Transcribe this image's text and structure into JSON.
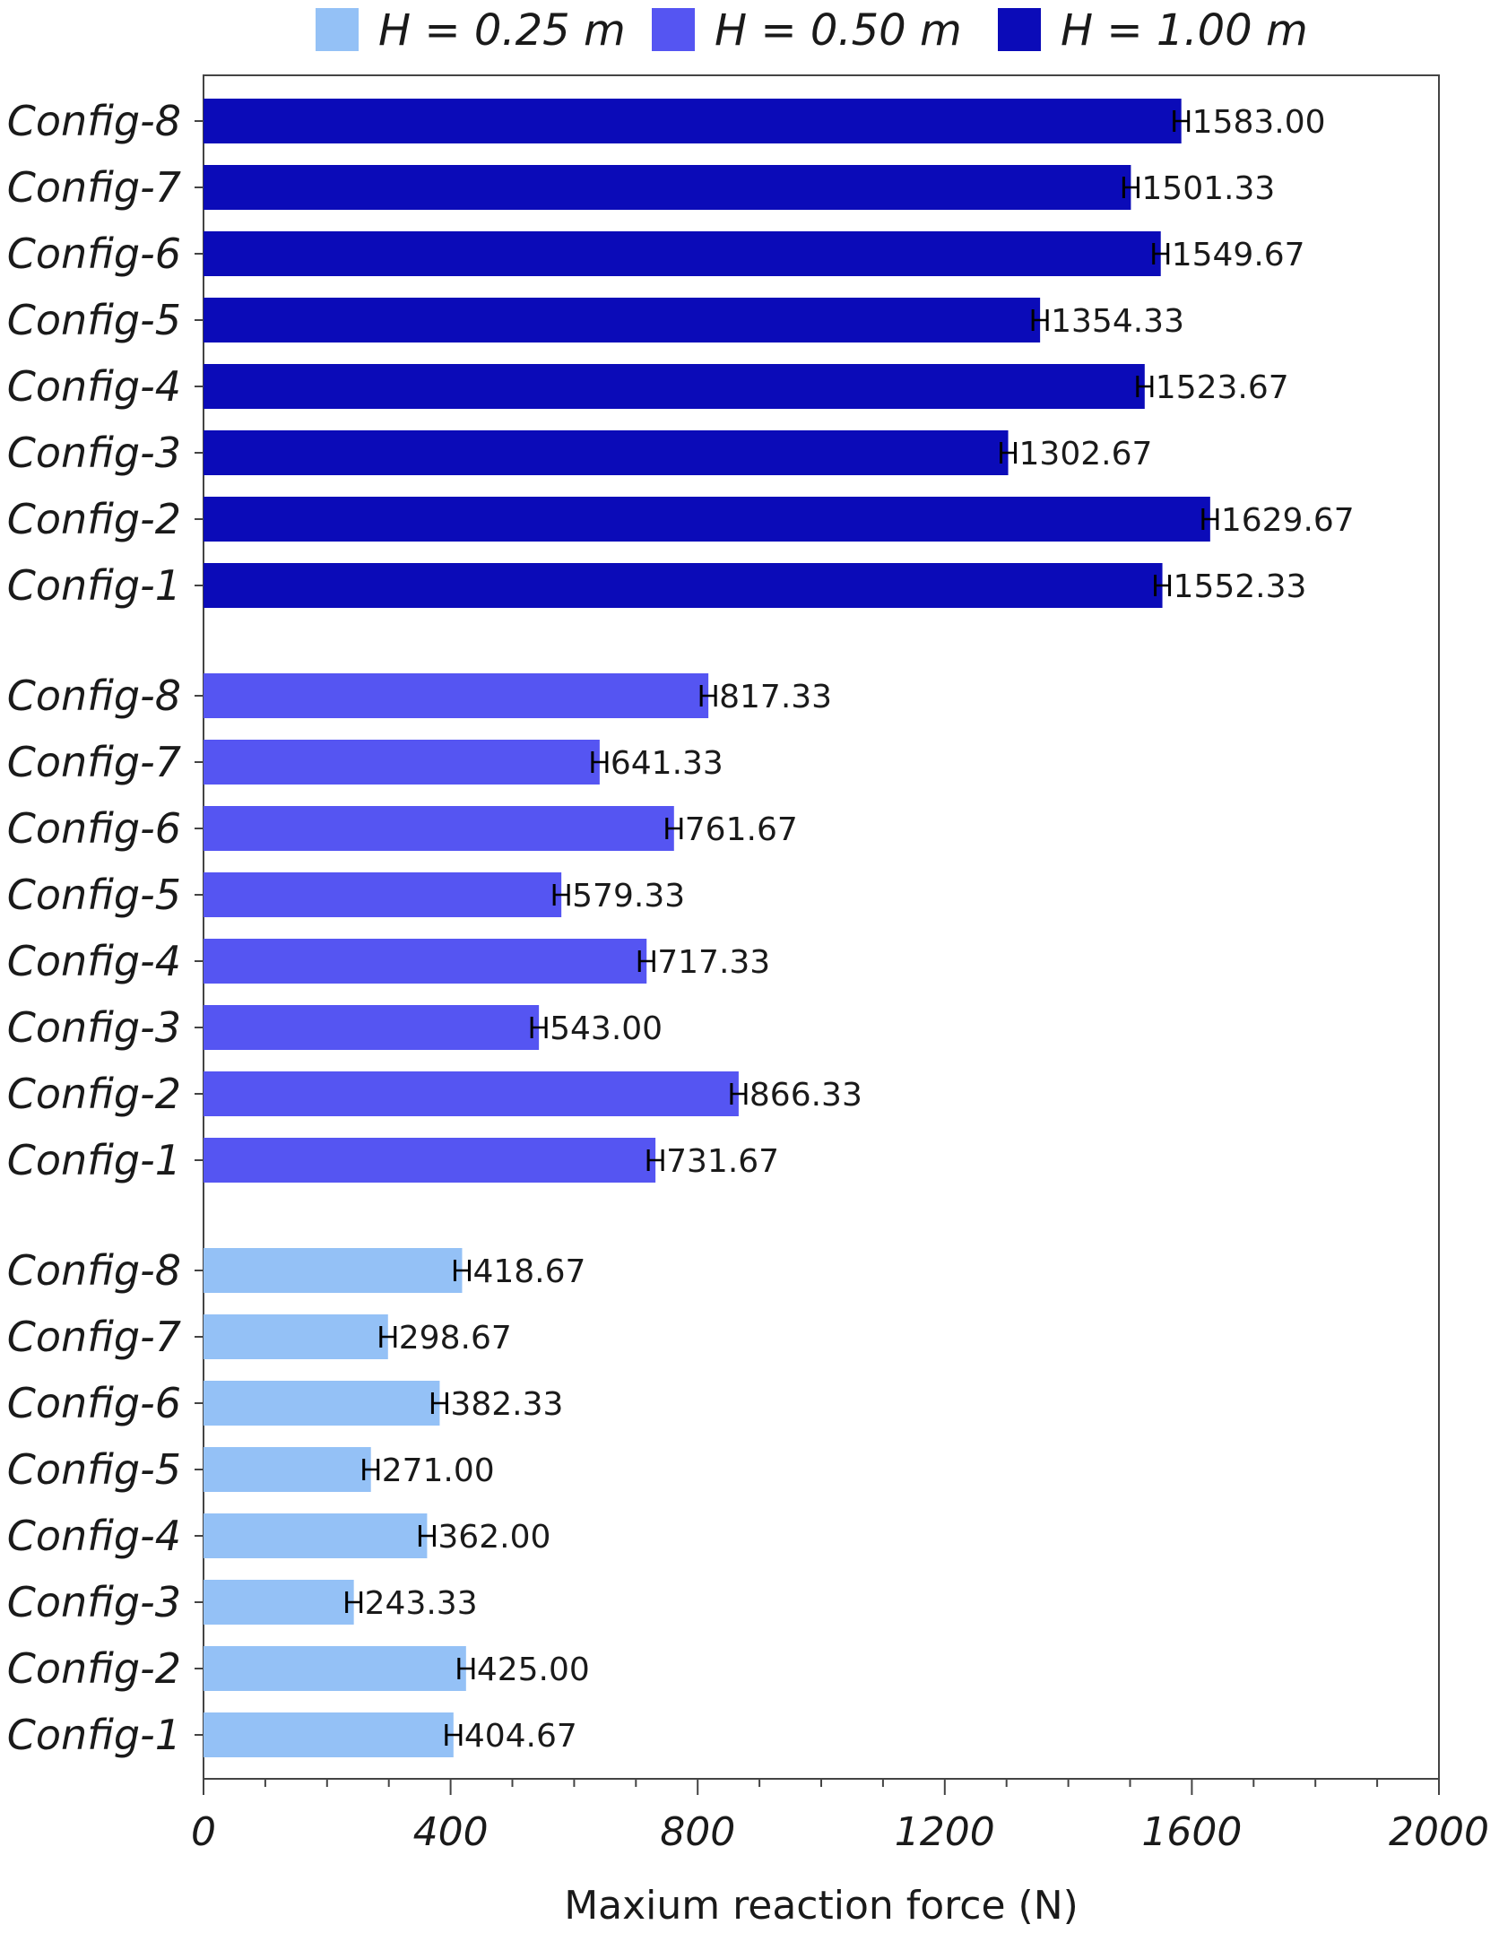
{
  "chart_data": {
    "type": "bar",
    "orientation": "horizontal",
    "xlabel": "Maxium reaction force (N)",
    "xlim": [
      0,
      2000
    ],
    "xticks": [
      0,
      400,
      800,
      1200,
      1600,
      2000
    ],
    "grid": false,
    "legend": {
      "placement": "top"
    },
    "categories": [
      "Config-1",
      "Config-2",
      "Config-3",
      "Config-4",
      "Config-5",
      "Config-6",
      "Config-7",
      "Config-8"
    ],
    "series": [
      {
        "name": "H = 0.25 m",
        "color": "#94c1f6",
        "values": [
          404.67,
          425.0,
          243.33,
          362.0,
          271.0,
          382.33,
          298.67,
          418.67
        ],
        "labels": [
          "404.67",
          "425.00",
          "243.33",
          "362.00",
          "271.00",
          "382.33",
          "298.67",
          "418.67"
        ]
      },
      {
        "name": "H = 0.50 m",
        "color": "#5555f2",
        "values": [
          731.67,
          866.33,
          543.0,
          717.33,
          579.33,
          761.67,
          641.33,
          817.33
        ],
        "labels": [
          "731.67",
          "866.33",
          "543.00",
          "717.33",
          "579.33",
          "761.67",
          "641.33",
          "817.33"
        ]
      },
      {
        "name": "H = 1.00 m",
        "color": "#0b0bb8",
        "values": [
          1552.33,
          1629.67,
          1302.67,
          1523.67,
          1354.33,
          1549.67,
          1501.33,
          1583.0
        ],
        "labels": [
          "1552.33",
          "1629.67",
          "1302.67",
          "1523.67",
          "1354.33",
          "1549.67",
          "1501.33",
          "1583.00"
        ]
      }
    ]
  }
}
